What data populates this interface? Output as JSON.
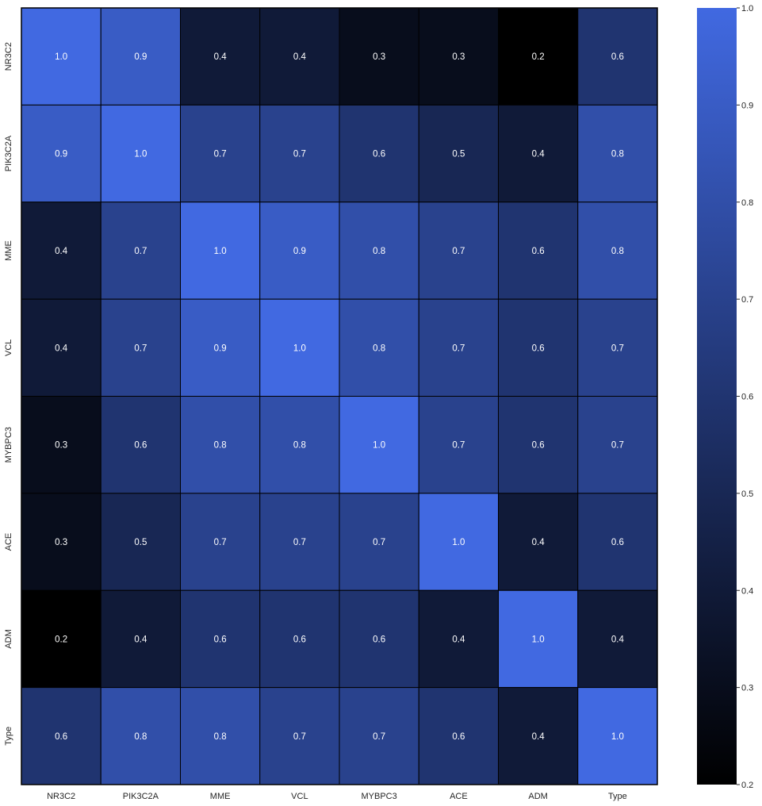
{
  "chart_data": {
    "type": "heatmap",
    "title": "",
    "xlabel": "",
    "ylabel": "",
    "x_categories": [
      "NR3C2",
      "PIK3C2A",
      "MME",
      "VCL",
      "MYBPC3",
      "ACE",
      "ADM",
      "Type"
    ],
    "y_categories": [
      "NR3C2",
      "PIK3C2A",
      "MME",
      "VCL",
      "MYBPC3",
      "ACE",
      "ADM",
      "Type"
    ],
    "values": [
      [
        1.0,
        0.9,
        0.4,
        0.4,
        0.3,
        0.3,
        0.2,
        0.6
      ],
      [
        0.9,
        1.0,
        0.7,
        0.7,
        0.6,
        0.5,
        0.4,
        0.8
      ],
      [
        0.4,
        0.7,
        1.0,
        0.9,
        0.8,
        0.7,
        0.6,
        0.8
      ],
      [
        0.4,
        0.7,
        0.9,
        1.0,
        0.8,
        0.7,
        0.6,
        0.7
      ],
      [
        0.3,
        0.6,
        0.8,
        0.8,
        1.0,
        0.7,
        0.6,
        0.7
      ],
      [
        0.3,
        0.5,
        0.7,
        0.7,
        0.7,
        1.0,
        0.4,
        0.6
      ],
      [
        0.2,
        0.4,
        0.6,
        0.6,
        0.6,
        0.4,
        1.0,
        0.4
      ],
      [
        0.6,
        0.8,
        0.8,
        0.7,
        0.7,
        0.6,
        0.4,
        1.0
      ]
    ],
    "cell_labels": [
      [
        "1.0",
        "0.9",
        "0.4",
        "0.4",
        "0.3",
        "0.3",
        "0.2",
        "0.6"
      ],
      [
        "0.9",
        "1.0",
        "0.7",
        "0.7",
        "0.6",
        "0.5",
        "0.4",
        "0.8"
      ],
      [
        "0.4",
        "0.7",
        "1.0",
        "0.9",
        "0.8",
        "0.7",
        "0.6",
        "0.8"
      ],
      [
        "0.4",
        "0.7",
        "0.9",
        "1.0",
        "0.8",
        "0.7",
        "0.6",
        "0.7"
      ],
      [
        "0.3",
        "0.6",
        "0.8",
        "0.8",
        "1.0",
        "0.7",
        "0.6",
        "0.7"
      ],
      [
        "0.3",
        "0.5",
        "0.7",
        "0.7",
        "0.7",
        "1.0",
        "0.4",
        "0.6"
      ],
      [
        "0.2",
        "0.4",
        "0.6",
        "0.6",
        "0.6",
        "0.4",
        "1.0",
        "0.4"
      ],
      [
        "0.6",
        "0.8",
        "0.8",
        "0.7",
        "0.7",
        "0.6",
        "0.4",
        "1.0"
      ]
    ],
    "colorbar": {
      "range": [
        0.2,
        1.0
      ],
      "ticks": [
        0.2,
        0.3,
        0.4,
        0.5,
        0.6,
        0.7,
        0.8,
        0.9,
        1.0
      ],
      "tick_labels": [
        "0.2",
        "0.3",
        "0.4",
        "0.5",
        "0.6",
        "0.7",
        "0.8",
        "0.9",
        "1.0"
      ],
      "color_min": "#000000",
      "color_max": "#4169e1"
    },
    "grid": false,
    "cell_border_color": "#000000"
  }
}
